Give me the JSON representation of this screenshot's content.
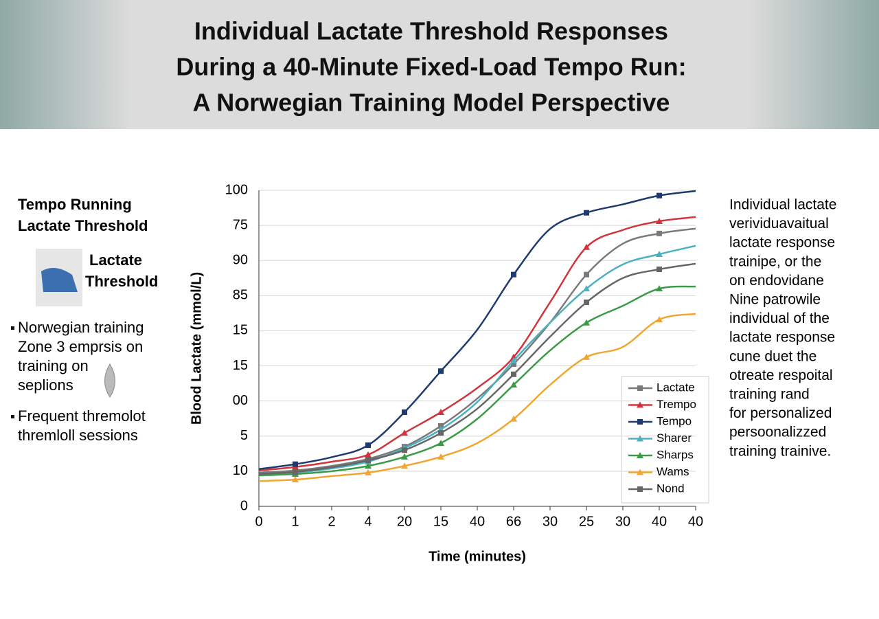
{
  "header": {
    "title": [
      "Individual Lactate Threshold Responses",
      "During a 40-Minute Fixed-Load Tempo Run:",
      "A Norwegian Training Model Perspective"
    ]
  },
  "left": {
    "heading": [
      "Tempo Running",
      "Lactate Threshold"
    ],
    "badge": [
      "Lactate",
      "Threshold"
    ],
    "bullets": [
      [
        "Norwegian training",
        "Zone 3 emprsis on",
        "training on",
        "seplions"
      ],
      [
        "Frequent thremolot",
        "thremloll sessions"
      ]
    ]
  },
  "right": {
    "lines": [
      "Individual lactate",
      "verividuavaitual",
      "lactate response",
      "trainipe, or the",
      "on endovidane",
      "Nine patrowile",
      "individual of the",
      "lactate response",
      "cune duet the",
      "otreate respoital",
      "training rand",
      "for personalized",
      "persoonalizzed",
      "training trainive."
    ]
  },
  "chart_data": {
    "type": "line",
    "x_label": "Time (minutes)",
    "y_label": "Blood Lactate  (mmol/L)",
    "categories": [
      "0",
      "1",
      "2",
      "4",
      "20",
      "15",
      "40",
      "66",
      "30",
      "25",
      "30",
      "40",
      "40"
    ],
    "ylim": [
      0,
      9
    ],
    "yticks": [
      0,
      {
        "value": 1,
        "label": "10"
      },
      {
        "value": 2,
        "label": "5"
      },
      {
        "value": 3,
        "label": "00"
      },
      {
        "value": 4,
        "label": "15"
      },
      {
        "value": 5,
        "label": "15"
      },
      {
        "value": 6,
        "label": "85"
      },
      {
        "value": 7,
        "label": "90"
      },
      {
        "value": 8,
        "label": "75"
      },
      {
        "value": 9,
        "label": "100"
      }
    ],
    "grid": true,
    "series": [
      {
        "name": "Lactate",
        "color": "#7a7a7a",
        "marker": "square",
        "values": [
          0.96,
          1.02,
          1.15,
          1.35,
          1.7,
          2.29,
          3.07,
          4.05,
          5.23,
          6.6,
          7.48,
          7.77,
          7.91
        ]
      },
      {
        "name": "Trempo",
        "color": "#d0343c",
        "marker": "triangle",
        "values": [
          1.02,
          1.12,
          1.27,
          1.47,
          2.09,
          2.68,
          3.37,
          4.25,
          5.81,
          7.38,
          7.87,
          8.12,
          8.24
        ]
      },
      {
        "name": "Tempo",
        "color": "#1f3a6e",
        "marker": "square",
        "values": [
          1.06,
          1.2,
          1.4,
          1.74,
          2.68,
          3.85,
          5.03,
          6.6,
          7.9,
          8.36,
          8.6,
          8.85,
          8.98
        ]
      },
      {
        "name": "Sharer",
        "color": "#4bb0bf",
        "marker": "triangle",
        "values": [
          0.92,
          0.96,
          1.08,
          1.27,
          1.66,
          2.19,
          2.97,
          4.15,
          5.23,
          6.2,
          6.89,
          7.18,
          7.42
        ]
      },
      {
        "name": "Sharps",
        "color": "#3a9a46",
        "marker": "triangle",
        "values": [
          0.88,
          0.92,
          1.0,
          1.15,
          1.41,
          1.8,
          2.49,
          3.46,
          4.44,
          5.23,
          5.71,
          6.2,
          6.26
        ]
      },
      {
        "name": "Wams",
        "color": "#f0a630",
        "marker": "triangle",
        "values": [
          0.72,
          0.76,
          0.86,
          0.96,
          1.15,
          1.41,
          1.8,
          2.49,
          3.46,
          4.25,
          4.54,
          5.32,
          5.48
        ]
      },
      {
        "name": "Nond",
        "color": "#666666",
        "marker": "square",
        "values": [
          0.92,
          0.98,
          1.11,
          1.31,
          1.6,
          2.09,
          2.78,
          3.76,
          4.83,
          5.81,
          6.5,
          6.75,
          6.91
        ]
      }
    ],
    "legend": "lower right"
  }
}
